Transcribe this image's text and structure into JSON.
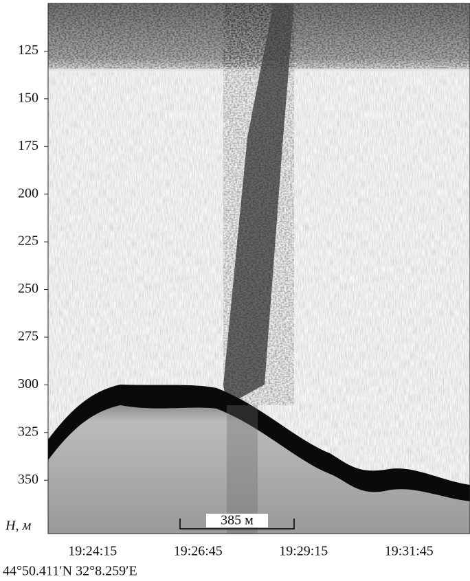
{
  "chart_data": {
    "type": "echogram",
    "y_label": "H, м",
    "ylim": [
      100,
      378
    ],
    "yticks": [
      125,
      150,
      175,
      200,
      225,
      250,
      275,
      300,
      325,
      350
    ],
    "categories": [
      "19:24:15",
      "19:26:45",
      "19:29:15",
      "19:31:45"
    ],
    "scale_label": "385 м",
    "position": "44°50.411′N 32°8.259′E"
  }
}
